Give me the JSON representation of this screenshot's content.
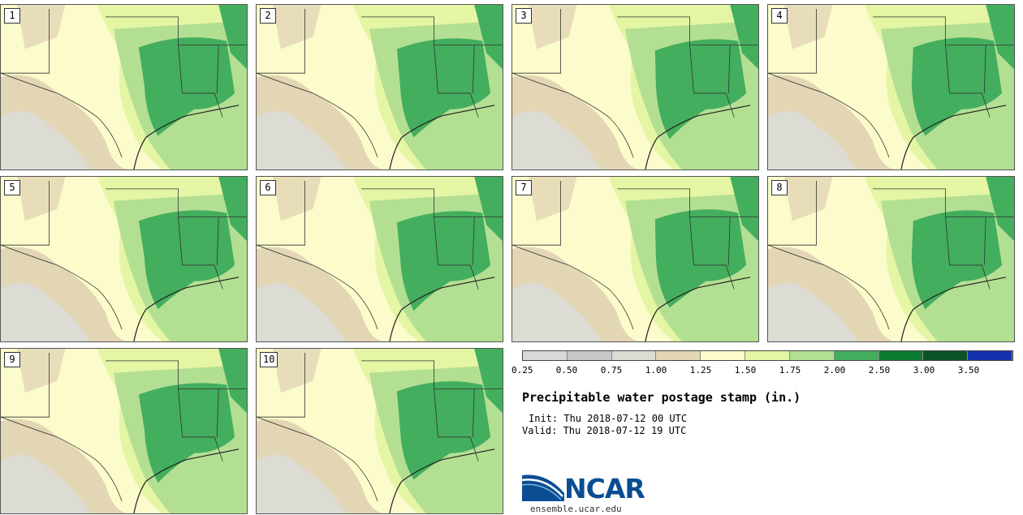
{
  "title": "Precipitable water postage stamp (in.)",
  "init": "Init: Thu 2018-07-12 00 UTC",
  "valid": "Valid: Thu 2018-07-12 19 UTC",
  "stamps": [
    {
      "label": "1"
    },
    {
      "label": "2"
    },
    {
      "label": "3"
    },
    {
      "label": "4"
    },
    {
      "label": "5"
    },
    {
      "label": "6"
    },
    {
      "label": "7"
    },
    {
      "label": "8"
    },
    {
      "label": "9"
    },
    {
      "label": "10"
    }
  ],
  "legend": {
    "colors": [
      "#d9d9d9",
      "#c8c8c8",
      "#dcdcd4",
      "#e3d6b4",
      "#fbfbcc",
      "#e4f5a4",
      "#b3df93",
      "#43ae5e",
      "#0d7a32",
      "#0b5326",
      "#1430ad"
    ],
    "ticks": [
      "0.25",
      "0.50",
      "0.75",
      "1.00",
      "1.25",
      "1.50",
      "1.75",
      "2.00",
      "2.50",
      "3.00",
      "3.50"
    ]
  },
  "logo": {
    "text": "NCAR",
    "url": "ensemble.ucar.edu"
  }
}
